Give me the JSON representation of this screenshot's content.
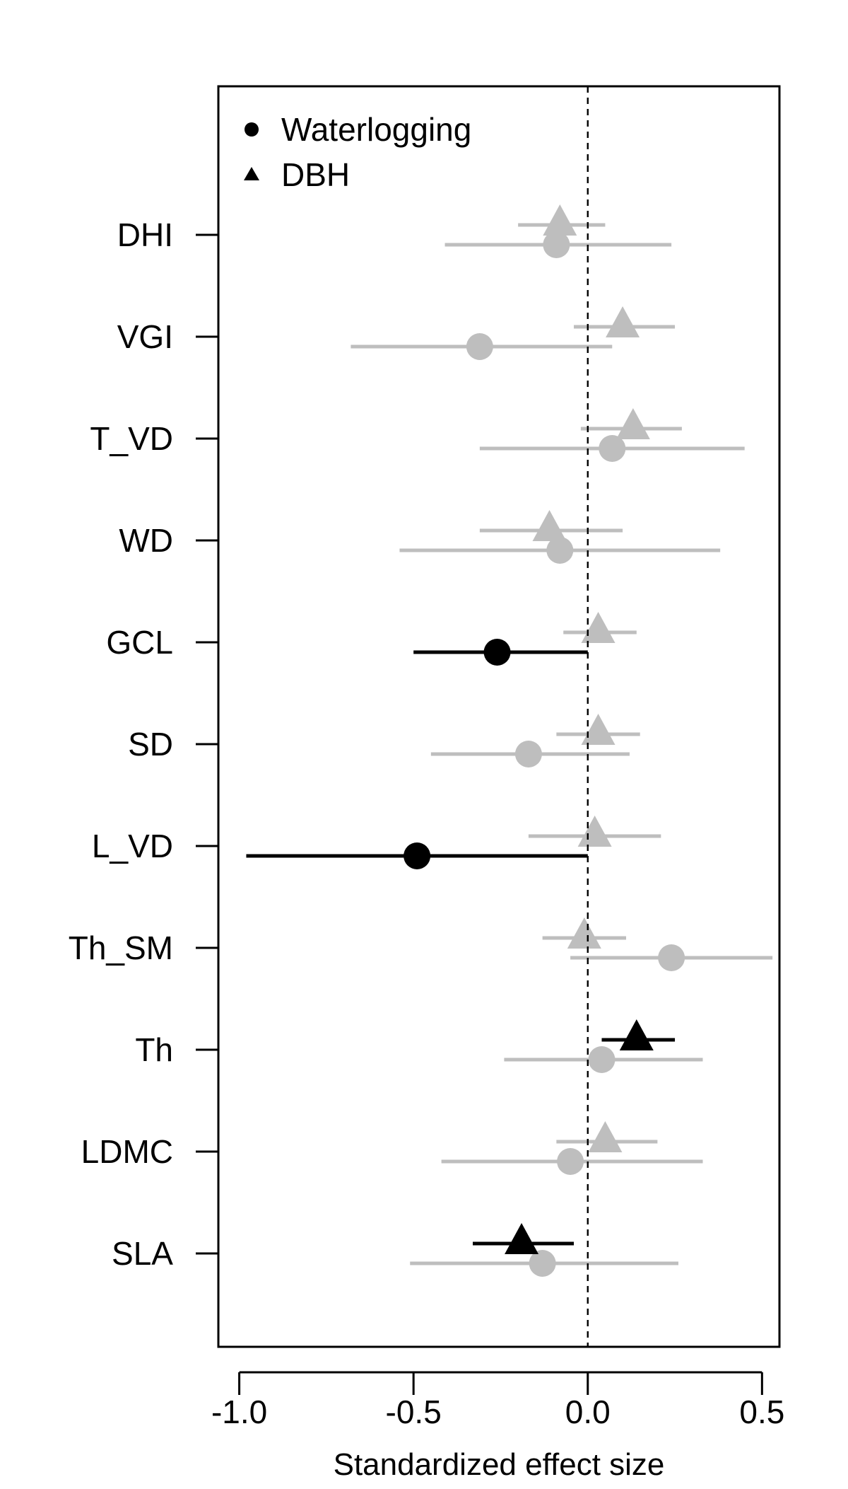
{
  "chart_data": {
    "type": "scatter",
    "title": "",
    "xlabel": "Standardized effect size",
    "ylabel": "",
    "xlim": [
      -1.06,
      0.55
    ],
    "xticks": [
      -1.0,
      -0.5,
      0.0,
      0.5
    ],
    "xtick_labels": [
      "-1.0",
      "-0.5",
      "0.0",
      "0.5"
    ],
    "reference_line": {
      "x": 0.0,
      "style": "dashed"
    },
    "grid": false,
    "legend": {
      "placement": "top-left",
      "entries": [
        {
          "name": "Waterlogging",
          "marker": "circle"
        },
        {
          "name": "DBH",
          "marker": "triangle"
        }
      ]
    },
    "colors": {
      "significant": "#000000",
      "not_significant": "#bebebe"
    },
    "categories": [
      "DHI",
      "VGI",
      "T_VD",
      "WD",
      "GCL",
      "SD",
      "L_VD",
      "Th_SM",
      "Th",
      "LDMC",
      "SLA"
    ],
    "series": [
      {
        "name": "Waterlogging",
        "marker": "circle",
        "points": [
          {
            "category": "DHI",
            "estimate": -0.09,
            "lower": -0.41,
            "upper": 0.24,
            "significant": false
          },
          {
            "category": "VGI",
            "estimate": -0.31,
            "lower": -0.68,
            "upper": 0.07,
            "significant": false
          },
          {
            "category": "T_VD",
            "estimate": 0.07,
            "lower": -0.31,
            "upper": 0.45,
            "significant": false
          },
          {
            "category": "WD",
            "estimate": -0.08,
            "lower": -0.54,
            "upper": 0.38,
            "significant": false
          },
          {
            "category": "GCL",
            "estimate": -0.26,
            "lower": -0.5,
            "upper": 0.0,
            "significant": true
          },
          {
            "category": "SD",
            "estimate": -0.17,
            "lower": -0.45,
            "upper": 0.12,
            "significant": false
          },
          {
            "category": "L_VD",
            "estimate": -0.49,
            "lower": -0.98,
            "upper": 0.0,
            "significant": true
          },
          {
            "category": "Th_SM",
            "estimate": 0.24,
            "lower": -0.05,
            "upper": 0.53,
            "significant": false
          },
          {
            "category": "Th",
            "estimate": 0.04,
            "lower": -0.24,
            "upper": 0.33,
            "significant": false
          },
          {
            "category": "LDMC",
            "estimate": -0.05,
            "lower": -0.42,
            "upper": 0.33,
            "significant": false
          },
          {
            "category": "SLA",
            "estimate": -0.13,
            "lower": -0.51,
            "upper": 0.26,
            "significant": false
          }
        ]
      },
      {
        "name": "DBH",
        "marker": "triangle",
        "points": [
          {
            "category": "DHI",
            "estimate": -0.08,
            "lower": -0.2,
            "upper": 0.05,
            "significant": false
          },
          {
            "category": "VGI",
            "estimate": 0.1,
            "lower": -0.04,
            "upper": 0.25,
            "significant": false
          },
          {
            "category": "T_VD",
            "estimate": 0.13,
            "lower": -0.02,
            "upper": 0.27,
            "significant": false
          },
          {
            "category": "WD",
            "estimate": -0.11,
            "lower": -0.31,
            "upper": 0.1,
            "significant": false
          },
          {
            "category": "GCL",
            "estimate": 0.03,
            "lower": -0.07,
            "upper": 0.14,
            "significant": false
          },
          {
            "category": "SD",
            "estimate": 0.03,
            "lower": -0.09,
            "upper": 0.15,
            "significant": false
          },
          {
            "category": "L_VD",
            "estimate": 0.02,
            "lower": -0.17,
            "upper": 0.21,
            "significant": false
          },
          {
            "category": "Th_SM",
            "estimate": -0.01,
            "lower": -0.13,
            "upper": 0.11,
            "significant": false
          },
          {
            "category": "Th",
            "estimate": 0.14,
            "lower": 0.04,
            "upper": 0.25,
            "significant": true
          },
          {
            "category": "LDMC",
            "estimate": 0.05,
            "lower": -0.09,
            "upper": 0.2,
            "significant": false
          },
          {
            "category": "SLA",
            "estimate": -0.19,
            "lower": -0.33,
            "upper": -0.04,
            "significant": true
          }
        ]
      }
    ]
  }
}
